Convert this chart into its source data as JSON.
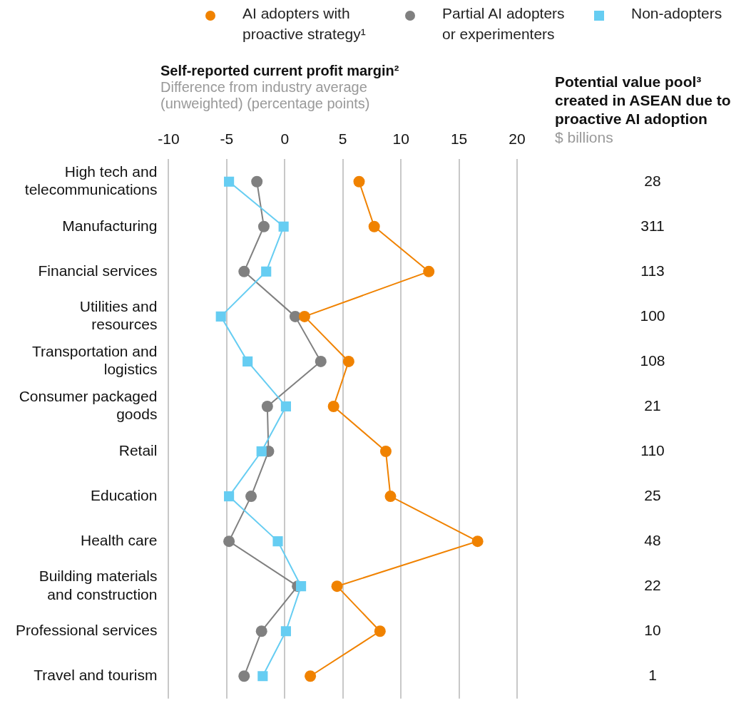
{
  "chart_data": {
    "type": "line",
    "orientation": "horizontal",
    "title": "Self-reported current profit margin²",
    "subtitle": "Difference from industry average (unweighted) (percentage points)",
    "categories": [
      "High tech and telecommunications",
      "Manufacturing",
      "Financial services",
      "Utilities and resources",
      "Transportation and logistics",
      "Consumer packaged goods",
      "Retail",
      "Education",
      "Health care",
      "Building materials and construction",
      "Professional services",
      "Travel and tourism"
    ],
    "series": [
      {
        "name": "AI adopters with proactive strategy¹",
        "color": "#f08200",
        "marker": "circle",
        "values": [
          6.4,
          7.7,
          12.4,
          1.7,
          5.5,
          4.2,
          8.7,
          9.1,
          16.6,
          4.5,
          8.2,
          2.2
        ]
      },
      {
        "name": "Partial AI adopters or experimenters",
        "color": "#808080",
        "marker": "circle",
        "values": [
          -2.4,
          -1.8,
          -3.5,
          0.9,
          3.1,
          -1.5,
          -1.4,
          -2.9,
          -4.8,
          1.1,
          -2.0,
          -3.5
        ]
      },
      {
        "name": "Non-adopters",
        "color": "#66cdf2",
        "marker": "square",
        "values": [
          -4.8,
          -0.1,
          -1.6,
          -5.5,
          -3.2,
          0.1,
          -2.0,
          -4.8,
          -0.6,
          1.4,
          0.1,
          -1.9
        ]
      }
    ],
    "xlim": [
      -10,
      20
    ],
    "xticks": [
      -10,
      -5,
      0,
      5,
      10,
      15,
      20
    ],
    "grid": "x",
    "legend": "top",
    "annotations": [
      "Potential value pool³ created in ASEAN due to proactive AI adoption",
      "$ billions",
      "28",
      "311",
      "113",
      "100",
      "108",
      "21",
      "110",
      "25",
      "48",
      "22",
      "10",
      "1"
    ]
  }
}
